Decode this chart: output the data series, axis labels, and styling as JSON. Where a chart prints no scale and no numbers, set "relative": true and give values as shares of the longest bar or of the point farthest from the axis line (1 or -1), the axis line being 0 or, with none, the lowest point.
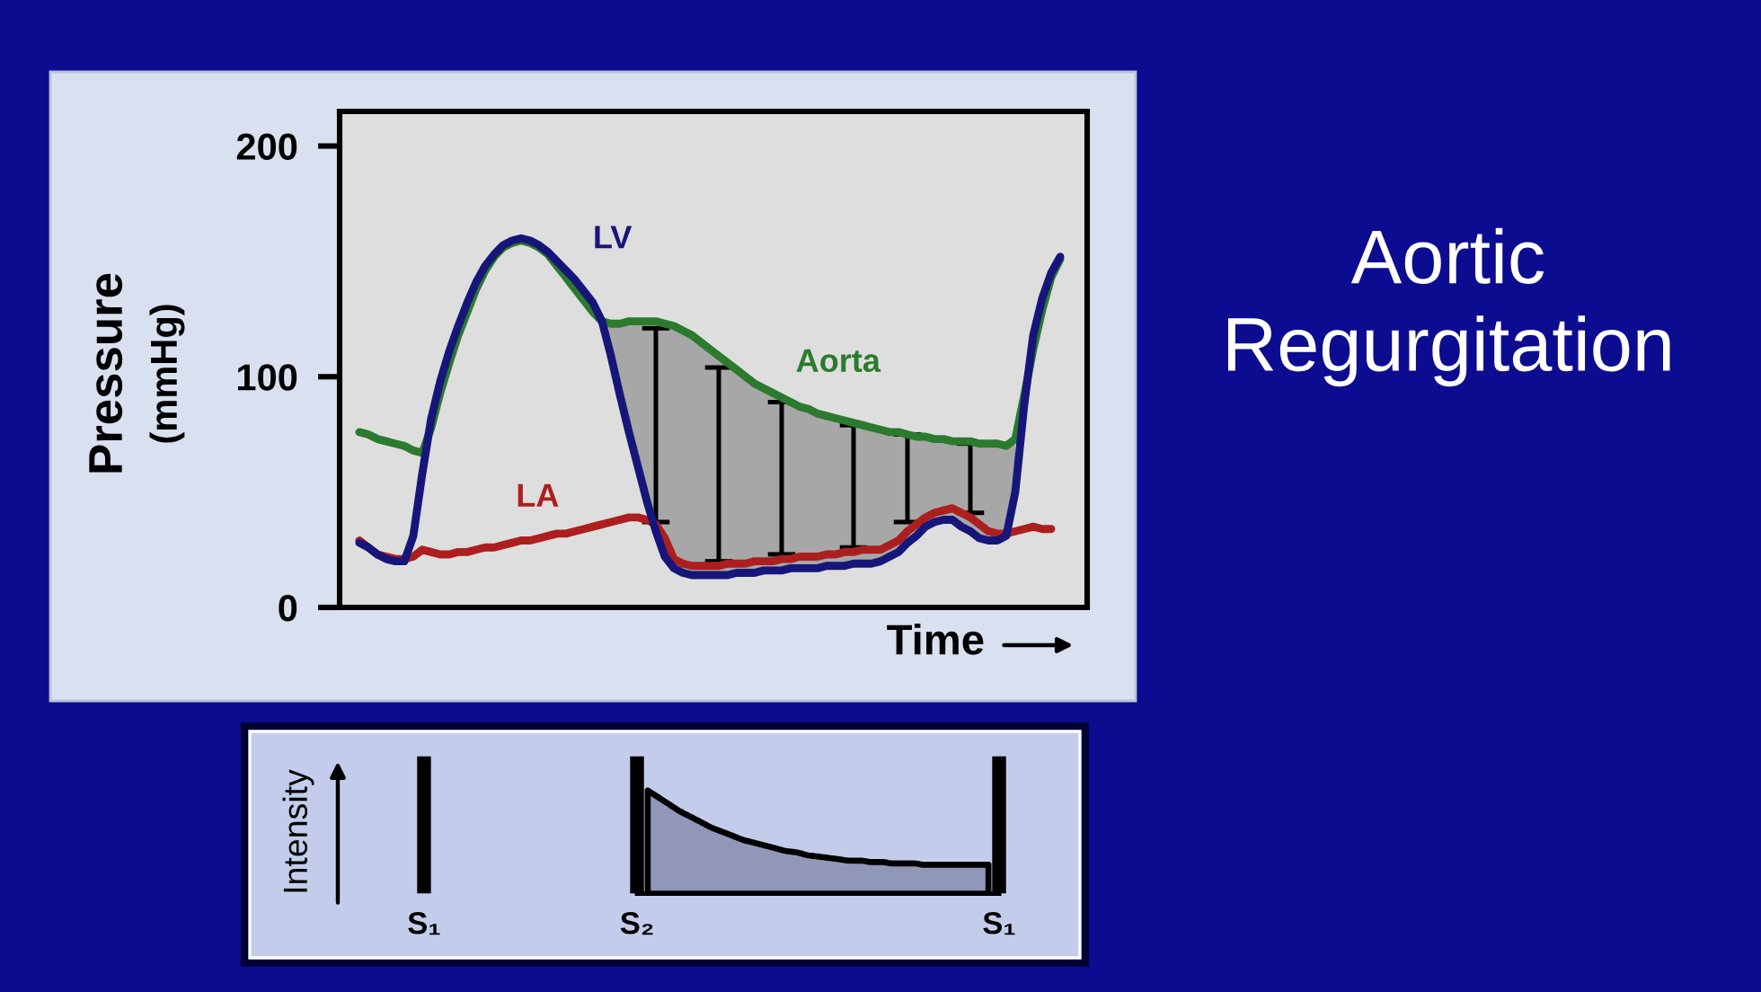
{
  "chart_data": [
    {
      "type": "line",
      "xlabel": "Time",
      "ylabel": "Pressure\n(mmHg)",
      "categories": [
        null,
        null,
        null,
        null,
        null,
        null,
        null,
        null,
        null,
        null,
        null,
        null,
        null,
        null,
        null,
        null,
        null,
        null,
        null,
        null,
        null,
        null,
        null,
        null,
        null,
        null,
        null,
        null,
        null,
        null,
        null,
        null,
        null,
        null,
        null,
        null,
        null,
        null,
        null,
        null,
        null,
        null,
        null,
        null,
        null,
        null,
        null,
        null,
        null,
        null,
        null,
        null,
        null,
        null,
        null,
        null,
        null,
        null,
        null,
        null,
        null,
        null,
        null,
        null,
        null,
        null,
        null,
        null,
        null,
        null,
        null,
        null,
        null,
        null,
        null,
        null,
        null,
        null,
        null
      ],
      "ylim": [
        0,
        215
      ],
      "yticks": [
        0,
        100,
        200
      ],
      "series": [
        {
          "name": "LV",
          "color": "#16167a",
          "values": [
            28,
            26,
            23,
            21,
            20,
            20,
            31,
            58,
            82,
            98,
            111,
            122,
            132,
            141,
            148,
            153,
            157,
            159,
            160,
            159,
            157,
            154,
            150,
            146,
            142,
            137,
            132,
            124,
            109,
            92,
            76,
            61,
            46,
            33,
            22,
            17,
            15,
            14,
            14,
            14,
            14,
            14,
            15,
            15,
            15,
            16,
            16,
            16,
            17,
            17,
            17,
            17,
            18,
            18,
            18,
            19,
            19,
            19,
            20,
            22,
            24,
            28,
            31,
            35,
            37,
            38,
            38,
            35,
            33,
            30,
            29,
            29,
            31,
            50,
            88,
            118,
            134,
            145,
            152
          ]
        },
        {
          "name": "Aorta",
          "color": "#2c7a2e",
          "values": [
            76,
            75,
            73,
            72,
            71,
            70,
            68,
            67,
            78,
            93,
            106,
            118,
            128,
            138,
            146,
            152,
            156,
            158,
            159,
            158,
            156,
            153,
            148,
            143,
            138,
            133,
            128,
            124,
            123,
            123,
            124,
            124,
            124,
            124,
            123,
            122,
            120,
            118,
            115,
            112,
            109,
            106,
            103,
            100,
            97,
            95,
            93,
            91,
            89,
            87,
            86,
            84,
            83,
            82,
            81,
            80,
            79,
            78,
            77,
            76,
            76,
            75,
            74,
            74,
            73,
            73,
            72,
            72,
            72,
            71,
            71,
            71,
            70,
            73,
            92,
            112,
            129,
            143,
            151
          ],
          "lower": [
            null,
            null,
            null,
            null,
            null,
            null,
            null,
            null,
            null,
            null,
            null,
            null,
            null,
            null,
            null,
            null,
            null,
            null,
            null,
            null,
            null,
            null,
            null,
            null,
            null,
            null,
            null,
            124,
            109,
            92,
            76,
            61,
            46,
            33,
            22,
            17,
            15,
            14,
            14,
            14,
            14,
            14,
            15,
            15,
            15,
            16,
            16,
            16,
            17,
            17,
            17,
            17,
            18,
            18,
            18,
            19,
            19,
            19,
            20,
            22,
            24,
            28,
            31,
            35,
            37,
            38,
            38,
            35,
            33,
            30,
            29,
            29,
            31,
            50,
            null,
            null,
            null,
            null,
            null
          ],
          "upper": [
            null,
            null,
            null,
            null,
            null,
            null,
            null,
            null,
            null,
            null,
            null,
            null,
            null,
            null,
            null,
            null,
            null,
            null,
            null,
            null,
            null,
            null,
            null,
            null,
            null,
            null,
            null,
            124,
            123,
            123,
            124,
            124,
            124,
            124,
            123,
            122,
            120,
            118,
            115,
            112,
            109,
            106,
            103,
            100,
            97,
            95,
            93,
            91,
            89,
            87,
            86,
            84,
            83,
            82,
            81,
            80,
            79,
            78,
            77,
            76,
            76,
            75,
            74,
            74,
            73,
            73,
            72,
            72,
            72,
            71,
            71,
            71,
            70,
            73,
            null,
            null,
            null,
            null,
            null
          ],
          "errors": [
            null,
            null,
            null,
            null,
            null,
            null,
            null,
            null,
            null,
            null,
            null,
            null,
            null,
            null,
            null,
            null,
            null,
            null,
            null,
            null,
            null,
            null,
            null,
            null,
            null,
            null,
            null,
            null,
            null,
            null,
            null,
            null,
            null,
            [
              37,
              121
            ],
            null,
            null,
            null,
            null,
            null,
            null,
            [
              20,
              104
            ],
            null,
            null,
            null,
            null,
            null,
            null,
            [
              23,
              89
            ],
            null,
            null,
            null,
            null,
            null,
            null,
            null,
            [
              26,
              79
            ],
            null,
            null,
            null,
            null,
            null,
            [
              37,
              75
            ],
            null,
            null,
            null,
            null,
            null,
            null,
            [
              41,
              71
            ],
            null,
            null,
            null,
            null,
            null,
            null,
            null,
            null,
            null,
            null
          ]
        },
        {
          "name": "LA",
          "color": "#ad1f1f",
          "values": [
            29,
            26,
            23,
            22,
            21,
            21,
            22,
            25,
            24,
            23,
            23,
            24,
            24,
            25,
            26,
            26,
            27,
            28,
            29,
            29,
            30,
            31,
            32,
            32,
            33,
            34,
            35,
            36,
            37,
            38,
            39,
            39,
            38,
            36,
            30,
            21,
            19,
            18,
            18,
            18,
            18,
            19,
            19,
            19,
            20,
            20,
            20,
            21,
            21,
            22,
            22,
            22,
            23,
            23,
            24,
            24,
            25,
            25,
            25,
            27,
            29,
            33,
            36,
            39,
            41,
            42,
            43,
            41,
            39,
            36,
            33,
            32,
            32,
            33,
            34,
            35,
            34,
            34,
            null
          ]
        }
      ]
    },
    {
      "type": "other",
      "title": "Aortic Regurgitation"
    },
    {
      "type": "bar",
      "relative": true,
      "ylabel": "Intensity",
      "categories": [
        "S₁",
        null,
        null,
        null,
        null,
        null,
        null,
        null,
        null,
        null,
        null,
        null,
        null,
        null,
        null,
        null,
        null,
        null,
        null,
        null,
        "S₂",
        null,
        null,
        null,
        null,
        null,
        null,
        null,
        null,
        null,
        null,
        null,
        null,
        null,
        null,
        null,
        null,
        null,
        null,
        null,
        null,
        null,
        null,
        null,
        null,
        null,
        null,
        null,
        null,
        null,
        null,
        null,
        null,
        null,
        "S₁"
      ],
      "series": [
        {
          "type": "bar",
          "color": "#000000",
          "values": [
            1,
            null,
            null,
            null,
            null,
            null,
            null,
            null,
            null,
            null,
            null,
            null,
            null,
            null,
            null,
            null,
            null,
            null,
            null,
            null,
            1,
            null,
            null,
            null,
            null,
            null,
            null,
            null,
            null,
            null,
            null,
            null,
            null,
            null,
            null,
            null,
            null,
            null,
            null,
            null,
            null,
            null,
            null,
            null,
            null,
            null,
            null,
            null,
            null,
            null,
            null,
            null,
            null,
            null,
            1
          ]
        },
        {
          "type": "area",
          "color": "#9197b8",
          "values": [
            null,
            null,
            null,
            null,
            null,
            null,
            null,
            null,
            null,
            null,
            null,
            null,
            null,
            null,
            null,
            null,
            null,
            null,
            null,
            null,
            null,
            0.75,
            0.7,
            0.65,
            0.6,
            0.56,
            0.52,
            0.48,
            0.45,
            0.42,
            0.39,
            0.37,
            0.35,
            0.33,
            0.31,
            0.3,
            0.28,
            0.27,
            0.26,
            0.25,
            0.24,
            0.24,
            0.23,
            0.23,
            0.22,
            0.22,
            0.22,
            0.21,
            0.21,
            0.21,
            0.21,
            0.21,
            0.21,
            0.21,
            null
          ]
        }
      ]
    }
  ]
}
